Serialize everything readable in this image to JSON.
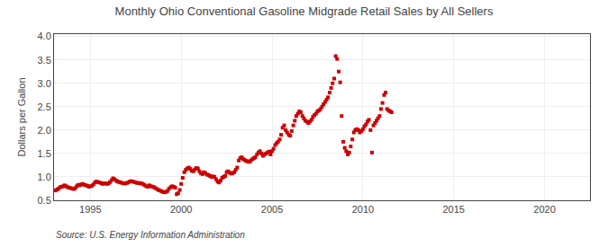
{
  "chart_data": {
    "type": "scatter",
    "title": "Monthly Ohio Conventional Gasoline Midgrade Retail Sales by All Sellers",
    "y_label": "Dollars per Gallon",
    "annotations": [
      "Source: U.S. Energy Information Administration"
    ],
    "color": "#cc0000",
    "marker": "square",
    "grid": true,
    "xlim": [
      1993.0,
      2022.5
    ],
    "ylim": [
      0.5,
      4.05
    ],
    "xticks": [
      1995,
      2000,
      2005,
      2010,
      2015,
      2020
    ],
    "yticks": [
      0.5,
      {
        "value": 1.0,
        "label": "1.0"
      },
      1.5,
      {
        "value": 2.0,
        "label": "2.0"
      },
      2.5,
      {
        "value": 3.0,
        "label": "3.0"
      },
      3.5,
      {
        "value": 4.0,
        "label": "4.0"
      }
    ],
    "x": [
      1993.08,
      1993.17,
      1993.25,
      1993.33,
      1993.42,
      1993.5,
      1993.58,
      1993.67,
      1993.75,
      1993.83,
      1993.92,
      1994.0,
      1994.08,
      1994.17,
      1994.25,
      1994.33,
      1994.42,
      1994.5,
      1994.58,
      1994.67,
      1994.75,
      1994.83,
      1994.92,
      1995.0,
      1995.08,
      1995.17,
      1995.25,
      1995.33,
      1995.42,
      1995.5,
      1995.58,
      1995.67,
      1995.75,
      1995.83,
      1995.92,
      1996.0,
      1996.08,
      1996.17,
      1996.25,
      1996.33,
      1996.42,
      1996.5,
      1996.58,
      1996.67,
      1996.75,
      1996.83,
      1996.92,
      1997.0,
      1997.08,
      1997.17,
      1997.25,
      1997.33,
      1997.42,
      1997.5,
      1997.58,
      1997.67,
      1997.75,
      1997.83,
      1997.92,
      1998.0,
      1998.08,
      1998.17,
      1998.25,
      1998.33,
      1998.42,
      1998.5,
      1998.58,
      1998.67,
      1998.75,
      1998.83,
      1998.92,
      1999.0,
      1999.08,
      1999.17,
      1999.25,
      1999.33,
      1999.42,
      1999.5,
      1999.58,
      1999.67,
      1999.75,
      1999.83,
      1999.92,
      2000.0,
      2000.08,
      2000.17,
      2000.25,
      2000.33,
      2000.42,
      2000.5,
      2000.58,
      2000.67,
      2000.75,
      2000.83,
      2000.92,
      2001.0,
      2001.08,
      2001.17,
      2001.25,
      2001.33,
      2001.42,
      2001.5,
      2001.58,
      2001.67,
      2001.75,
      2001.83,
      2001.92,
      2002.0,
      2002.08,
      2002.17,
      2002.25,
      2002.33,
      2002.42,
      2002.5,
      2002.58,
      2002.67,
      2002.75,
      2002.83,
      2002.92,
      2003.0,
      2003.08,
      2003.17,
      2003.25,
      2003.33,
      2003.42,
      2003.5,
      2003.58,
      2003.67,
      2003.75,
      2003.83,
      2003.92,
      2004.0,
      2004.08,
      2004.17,
      2004.25,
      2004.33,
      2004.42,
      2004.5,
      2004.58,
      2004.67,
      2004.75,
      2004.83,
      2004.92,
      2005.0,
      2005.08,
      2005.17,
      2005.25,
      2005.33,
      2005.42,
      2005.5,
      2005.58,
      2005.67,
      2005.75,
      2005.83,
      2005.92,
      2006.0,
      2006.08,
      2006.17,
      2006.25,
      2006.33,
      2006.42,
      2006.5,
      2006.58,
      2006.67,
      2006.75,
      2006.83,
      2006.92,
      2007.0,
      2007.08,
      2007.17,
      2007.25,
      2007.33,
      2007.42,
      2007.5,
      2007.58,
      2007.67,
      2007.75,
      2007.83,
      2007.92,
      2008.0,
      2008.08,
      2008.17,
      2008.25,
      2008.33,
      2008.42,
      2008.5,
      2008.58,
      2008.67,
      2008.75,
      2008.83,
      2008.92,
      2009.0,
      2009.08,
      2009.17,
      2009.25,
      2009.33,
      2009.42,
      2009.5,
      2009.58,
      2009.67,
      2009.75,
      2009.83,
      2009.92,
      2010.0,
      2010.08,
      2010.17,
      2010.25,
      2010.33,
      2010.42,
      2010.5,
      2010.58,
      2010.67,
      2010.75,
      2010.83,
      2010.92,
      2011.0,
      2011.08,
      2011.17,
      2011.25,
      2011.33,
      2011.42,
      2011.5,
      2011.58
    ],
    "values": [
      0.71,
      0.73,
      0.75,
      0.78,
      0.79,
      0.8,
      0.82,
      0.8,
      0.78,
      0.77,
      0.76,
      0.75,
      0.74,
      0.76,
      0.8,
      0.83,
      0.82,
      0.84,
      0.85,
      0.83,
      0.82,
      0.81,
      0.79,
      0.8,
      0.81,
      0.84,
      0.88,
      0.9,
      0.89,
      0.88,
      0.87,
      0.85,
      0.86,
      0.86,
      0.85,
      0.86,
      0.89,
      0.93,
      0.97,
      0.95,
      0.92,
      0.9,
      0.89,
      0.88,
      0.87,
      0.86,
      0.86,
      0.87,
      0.88,
      0.9,
      0.91,
      0.9,
      0.89,
      0.88,
      0.87,
      0.87,
      0.86,
      0.86,
      0.84,
      0.82,
      0.8,
      0.79,
      0.82,
      0.8,
      0.79,
      0.78,
      0.76,
      0.74,
      0.72,
      0.71,
      0.69,
      0.68,
      0.67,
      0.68,
      0.7,
      0.75,
      0.78,
      0.8,
      0.79,
      0.77,
      0.63,
      0.65,
      0.72,
      0.85,
      0.98,
      1.1,
      1.15,
      1.18,
      1.2,
      1.17,
      1.13,
      1.12,
      1.16,
      1.19,
      1.18,
      1.12,
      1.08,
      1.06,
      1.1,
      1.08,
      1.05,
      1.04,
      1.02,
      1.0,
      1.01,
      1.0,
      0.95,
      0.9,
      0.88,
      0.92,
      0.98,
      1.0,
      1.02,
      1.1,
      1.12,
      1.09,
      1.07,
      1.08,
      1.1,
      1.15,
      1.2,
      1.35,
      1.4,
      1.42,
      1.38,
      1.36,
      1.34,
      1.33,
      1.32,
      1.35,
      1.38,
      1.4,
      1.42,
      1.48,
      1.52,
      1.55,
      1.5,
      1.45,
      1.48,
      1.5,
      1.52,
      1.54,
      1.48,
      1.55,
      1.6,
      1.68,
      1.72,
      1.75,
      1.8,
      1.9,
      2.05,
      2.1,
      2.0,
      1.95,
      1.9,
      1.88,
      1.98,
      2.1,
      2.2,
      2.3,
      2.35,
      2.4,
      2.38,
      2.3,
      2.25,
      2.2,
      2.18,
      2.15,
      2.18,
      2.22,
      2.28,
      2.32,
      2.35,
      2.4,
      2.42,
      2.45,
      2.5,
      2.55,
      2.6,
      2.65,
      2.7,
      2.8,
      2.9,
      3.0,
      3.1,
      3.58,
      3.52,
      3.25,
      3.02,
      2.3,
      1.75,
      1.62,
      1.55,
      1.48,
      1.52,
      1.65,
      1.8,
      1.95,
      2.0,
      2.02,
      2.0,
      1.95,
      1.98,
      2.02,
      2.08,
      2.12,
      2.18,
      2.22,
      2.0,
      1.52,
      2.1,
      2.15,
      2.2,
      2.25,
      2.3,
      2.45,
      2.58,
      2.75,
      2.8,
      2.45,
      2.42,
      2.4,
      2.38
    ]
  }
}
